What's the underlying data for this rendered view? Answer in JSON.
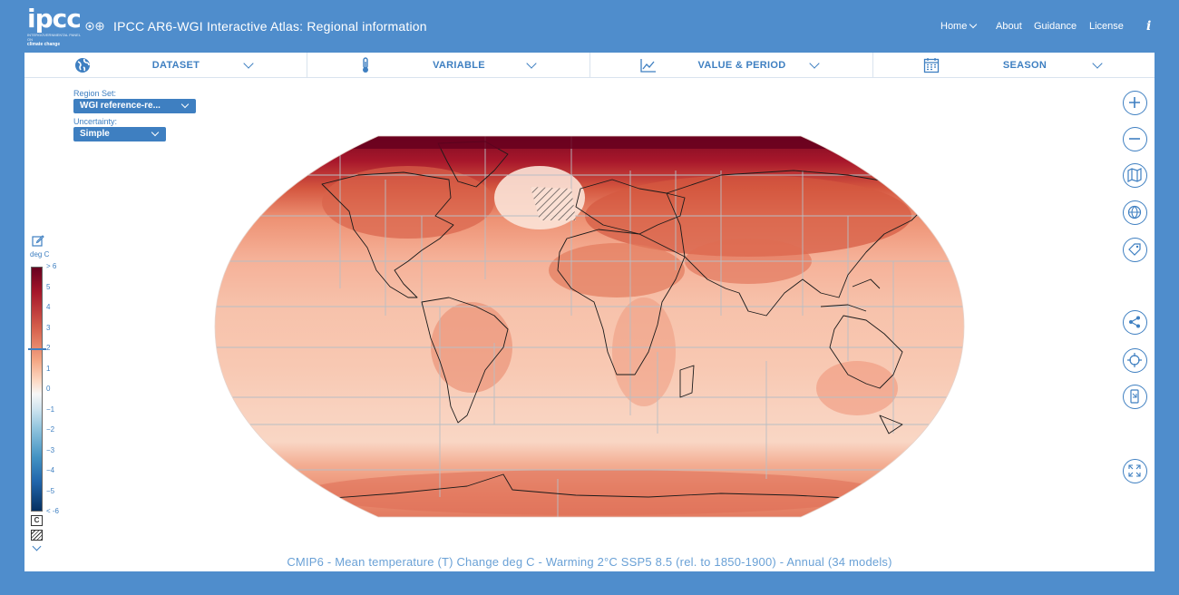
{
  "header": {
    "logo_text": "ipcc",
    "logo_sub": "INTERGOVERNMENTAL PANEL ON",
    "logo_sub2": "climate change",
    "title": "IPCC AR6-WGI Interactive Atlas: Regional information",
    "nav": {
      "home": "Home",
      "about": "About",
      "guidance": "Guidance",
      "license": "License"
    },
    "info_glyph": "i"
  },
  "toolbar": {
    "dataset": "DATASET",
    "variable": "VARIABLE",
    "value_period": "VALUE & PERIOD",
    "season": "SEASON"
  },
  "selectors": {
    "region_set_label": "Region Set:",
    "region_set_value": "WGI reference-re...",
    "uncertainty_label": "Uncertainty:",
    "uncertainty_value": "Simple"
  },
  "legend": {
    "unit": "deg C",
    "ticks": [
      "> 6",
      "5",
      "4",
      "3",
      "2",
      "1",
      "0",
      "−1",
      "−2",
      "−3",
      "−4",
      "−5",
      "< -6"
    ],
    "marker_value": 2,
    "uncertainty_box": "C"
  },
  "map": {
    "projection": "Robinson",
    "variable": "Mean temperature (T) change",
    "colors": {
      "low": "#fbe0d2",
      "mid": "#f2a487",
      "high": "#b2182b",
      "max": "#67001f",
      "region_border": "#b9bec4",
      "coast": "#1a1a1a"
    }
  },
  "controls": [
    "zoom-in-icon",
    "zoom-out-icon",
    "map-layers-icon",
    "globe-icon",
    "tag-icon",
    "share-icon",
    "locate-icon",
    "device-icon",
    "fullscreen-icon"
  ],
  "caption": "CMIP6 - Mean temperature (T) Change deg C - Warming 2°C SSP5 8.5 (rel. to 1850-1900) - Annual (34 models)"
}
